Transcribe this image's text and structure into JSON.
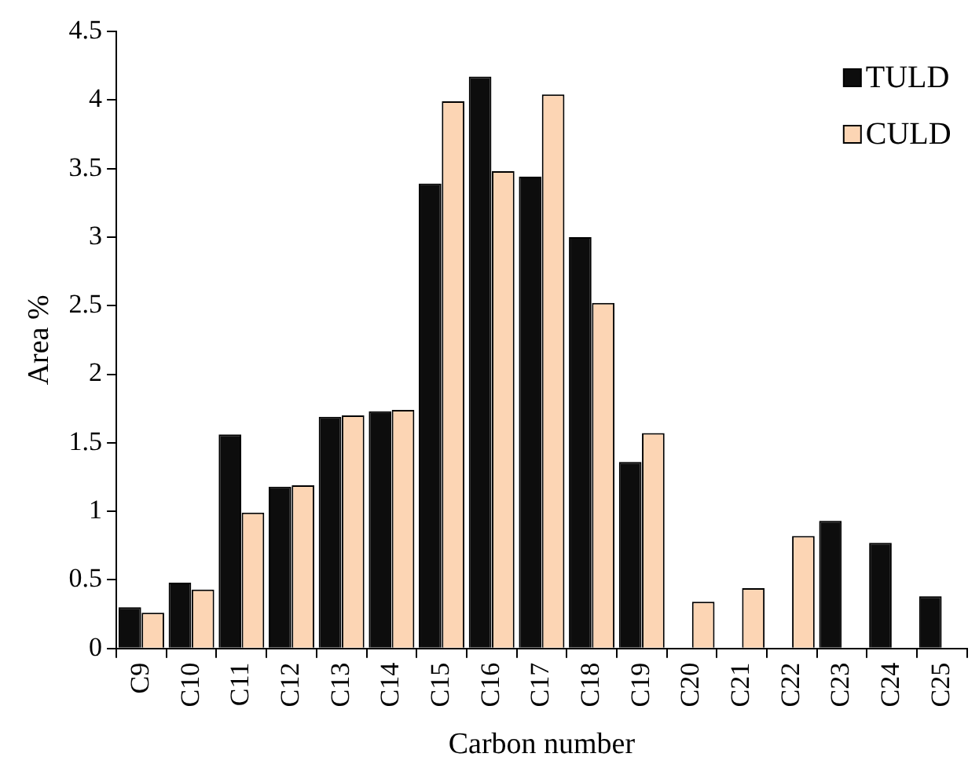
{
  "chart_data": {
    "type": "bar",
    "xlabel": "Carbon number",
    "ylabel": "Area %",
    "categories": [
      "C9",
      "C10",
      "C11",
      "C12",
      "C13",
      "C14",
      "C15",
      "C16",
      "C17",
      "C18",
      "C19",
      "C20",
      "C21",
      "C22",
      "C23",
      "C24",
      "C25"
    ],
    "series": [
      {
        "name": "TULD",
        "color": "#0d0d0d",
        "values": [
          0.3,
          0.48,
          1.56,
          1.18,
          1.69,
          1.73,
          3.39,
          4.17,
          3.44,
          3.0,
          1.36,
          null,
          null,
          null,
          0.93,
          0.77,
          0.38
        ]
      },
      {
        "name": "CULD",
        "color": "#fcd5b4",
        "values": [
          0.26,
          0.43,
          0.99,
          1.19,
          1.7,
          1.74,
          3.99,
          3.48,
          4.04,
          2.52,
          1.57,
          0.34,
          0.44,
          0.82,
          null,
          null,
          null
        ]
      }
    ],
    "ylim": [
      0,
      4.5
    ],
    "yticks": [
      0,
      0.5,
      1,
      1.5,
      2,
      2.5,
      3,
      3.5,
      4,
      4.5
    ],
    "grid": false,
    "legend": "top right"
  }
}
